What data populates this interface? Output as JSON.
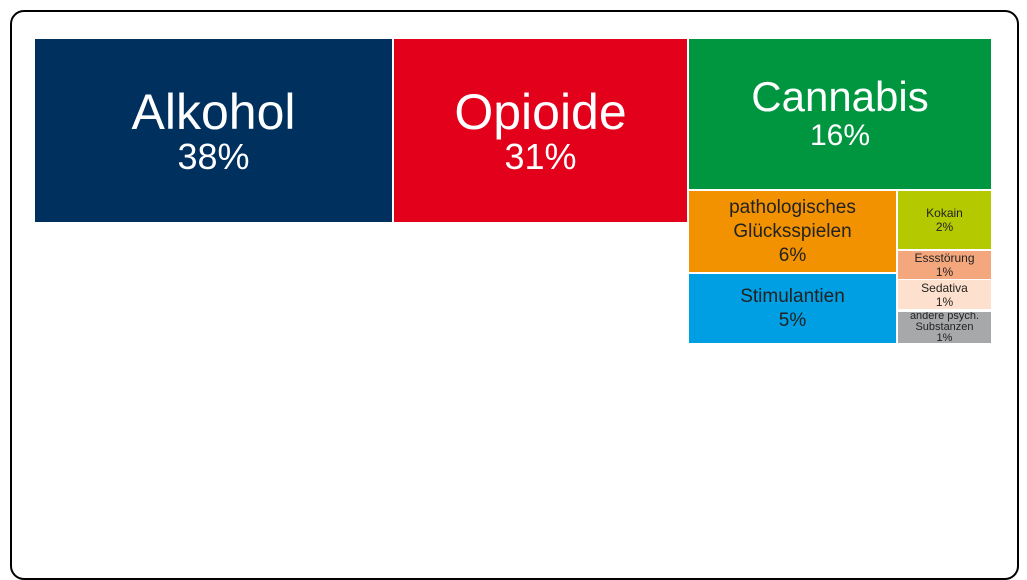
{
  "chart_data": {
    "type": "treemap",
    "title": "",
    "items": [
      {
        "name": "Alkohol",
        "label": "38%",
        "value": 38,
        "color": "#00305e",
        "text_color": "#ffffff",
        "size": "xl"
      },
      {
        "name": "Opioide",
        "label": "31%",
        "value": 31,
        "color": "#e2001a",
        "text_color": "#ffffff",
        "size": "xl"
      },
      {
        "name": "Cannabis",
        "label": "16%",
        "value": 16,
        "color": "#00963f",
        "text_color": "#ffffff",
        "size": "lg"
      },
      {
        "name": "pathologisches Glücksspielen",
        "label": "6%",
        "value": 6,
        "color": "#f39200",
        "text_color": "#222222",
        "size": "md"
      },
      {
        "name": "Stimulantien",
        "label": "5%",
        "value": 5,
        "color": "#009fe3",
        "text_color": "#222222",
        "size": "md"
      },
      {
        "name": "Kokain",
        "label": "2%",
        "value": 2,
        "color": "#b5c900",
        "text_color": "#222222",
        "size": "sm"
      },
      {
        "name": "Essstörung",
        "label": "1%",
        "value": 1,
        "color": "#f4a77c",
        "text_color": "#222222",
        "size": "sm"
      },
      {
        "name": "Sedativa",
        "label": "1%",
        "value": 1,
        "color": "#fde0cd",
        "text_color": "#222222",
        "size": "sm"
      },
      {
        "name": "andere psych. Substanzen",
        "label": "1%",
        "value": 1,
        "color": "#a7a8aa",
        "text_color": "#222222",
        "size": "xs"
      }
    ]
  }
}
